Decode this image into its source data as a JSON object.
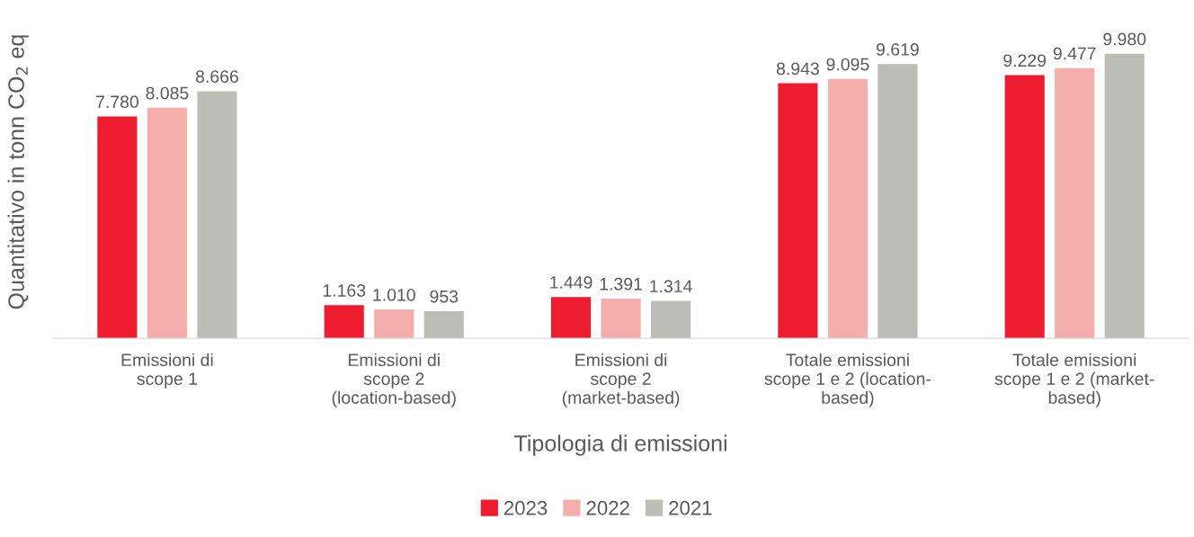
{
  "chart_data": {
    "type": "bar",
    "xlabel": "Tipologia di emissioni",
    "ylabel": "Quantitativo in tonn CO$_{2}$ eq",
    "categories": [
      "Emissioni di\nscope 1",
      "Emissioni di\nscope 2\n(location-based)",
      "Emissioni di\nscope 2\n(market-based)",
      "Totale emissioni\nscope 1 e 2 (location-\nbased)",
      "Totale emissioni\nscope 1 e 2 (market-\nbased)"
    ],
    "series": [
      {
        "name": "2023",
        "color": "#ed1c2e",
        "values": [
          7780,
          1163,
          1449,
          8943,
          9229
        ],
        "value_labels": [
          "7.780",
          "1.163",
          "1.449",
          "8.943",
          "9.229"
        ]
      },
      {
        "name": "2022",
        "color": "#f4aeab",
        "values": [
          8085,
          1010,
          1391,
          9095,
          9477
        ],
        "value_labels": [
          "8.085",
          "1.010",
          "1.391",
          "9.095",
          "9.477"
        ]
      },
      {
        "name": "2021",
        "color": "#bdbdb7",
        "values": [
          8666,
          953,
          1314,
          9619,
          9980
        ],
        "value_labels": [
          "8.666",
          "953",
          "1.314",
          "9.619",
          "9.980"
        ]
      }
    ],
    "legend": "bottom",
    "grid": false,
    "tick_labels": "x"
  }
}
